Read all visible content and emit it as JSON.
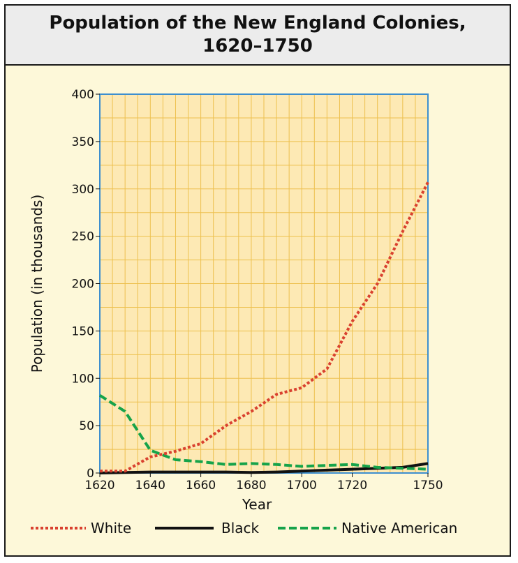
{
  "chart_data": {
    "type": "line",
    "title_lines": [
      "Population of the New England Colonies,",
      "1620–1750"
    ],
    "xlabel": "Year",
    "ylabel": "Population (in thousands)",
    "xlim": [
      1620,
      1750
    ],
    "ylim": [
      0,
      400
    ],
    "x_ticks": [
      1620,
      1640,
      1660,
      1680,
      1700,
      1720,
      1750
    ],
    "y_ticks": [
      0,
      50,
      100,
      150,
      200,
      250,
      300,
      350,
      400
    ],
    "grid": true,
    "legend_position": "bottom",
    "x": [
      1620,
      1630,
      1640,
      1650,
      1660,
      1670,
      1680,
      1690,
      1700,
      1710,
      1720,
      1730,
      1740,
      1750
    ],
    "series": [
      {
        "name": "White",
        "color": "#d9412f",
        "dash": "dotted",
        "values": [
          2,
          2,
          17,
          23,
          31,
          50,
          65,
          83,
          90,
          110,
          160,
          200,
          255,
          307
        ]
      },
      {
        "name": "Black",
        "color": "#111111",
        "dash": "solid",
        "values": [
          0,
          0.5,
          1,
          1,
          1,
          1,
          0.5,
          1,
          2,
          3,
          4,
          5,
          6,
          10
        ]
      },
      {
        "name": "Native American",
        "color": "#16a34a",
        "dash": "dashed",
        "values": [
          82,
          65,
          24,
          14,
          12,
          9,
          10,
          9,
          7,
          8,
          9,
          6,
          5,
          4
        ]
      }
    ],
    "colors": {
      "plot_bg": "#fde9b4",
      "grid": "#edc04e",
      "plot_border": "#3d8fcf",
      "page_bg": "#fdf8d9"
    }
  }
}
